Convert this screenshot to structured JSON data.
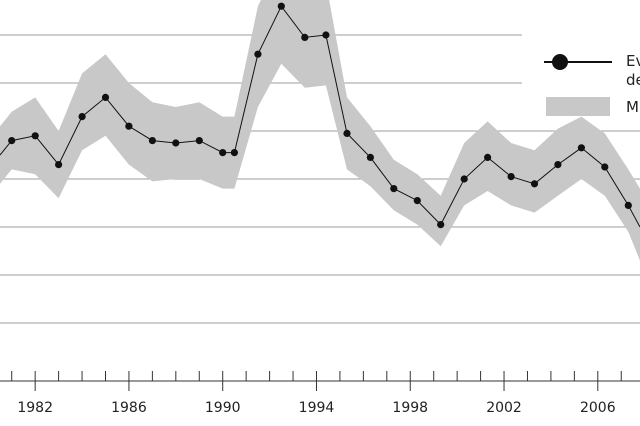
{
  "chart_data": {
    "type": "line",
    "title": "",
    "xlabel": "",
    "ylabel": "",
    "x_tick_labels": [
      "1982",
      "1986",
      "1990",
      "1994",
      "1998",
      "2002",
      "2006"
    ],
    "x_ticks": [
      1982,
      1986,
      1990,
      1994,
      1998,
      2002,
      2006
    ],
    "xlim": [
      1980.5,
      2007.8
    ],
    "ylim": [
      0,
      6
    ],
    "grid": true,
    "legend_position": "top-right",
    "legend": [
      "Ev de",
      "M"
    ],
    "series": [
      {
        "name": "Ev de",
        "style": "line-with-dots",
        "color": "#111111",
        "x": [
          1980.5,
          1981,
          1982,
          1983,
          1984,
          1985,
          1986,
          1987,
          1988,
          1989,
          1990,
          1990.5,
          1991.5,
          1992.5,
          1993.5,
          1994.4,
          1995.3,
          1996.3,
          1997.3,
          1998.3,
          1999.3,
          2000.3,
          2001.3,
          2002.3,
          2003.3,
          2004.3,
          2005.3,
          2006.3,
          2007.3,
          2007.8
        ],
        "y": [
          3.5,
          3.8,
          3.9,
          3.3,
          4.3,
          4.7,
          4.1,
          3.8,
          3.75,
          3.8,
          3.55,
          3.55,
          5.6,
          6.6,
          5.95,
          6.0,
          3.95,
          3.45,
          2.8,
          2.55,
          2.05,
          3.0,
          3.45,
          3.05,
          2.9,
          3.3,
          3.65,
          3.25,
          2.45,
          2.0
        ],
        "band_upper": [
          4.1,
          4.4,
          4.7,
          4.0,
          5.2,
          5.6,
          5.0,
          4.6,
          4.5,
          4.6,
          4.3,
          4.3,
          6.6,
          7.6,
          7.05,
          7.1,
          4.7,
          4.1,
          3.4,
          3.1,
          2.65,
          3.75,
          4.2,
          3.75,
          3.6,
          4.05,
          4.3,
          3.95,
          3.2,
          2.8
        ],
        "band_lower": [
          2.9,
          3.2,
          3.1,
          2.6,
          3.6,
          3.9,
          3.3,
          2.95,
          3.0,
          3.0,
          2.8,
          2.8,
          4.5,
          5.4,
          4.9,
          4.95,
          3.2,
          2.85,
          2.35,
          2.05,
          1.6,
          2.45,
          2.75,
          2.45,
          2.3,
          2.65,
          3.0,
          2.65,
          1.9,
          1.3
        ]
      }
    ],
    "band": {
      "name": "M",
      "color": "#c8c8c8"
    },
    "colors": {
      "line": "#111111",
      "band": "#c8c8c8",
      "grid": "#9e9e9e",
      "axis": "#333333"
    }
  }
}
